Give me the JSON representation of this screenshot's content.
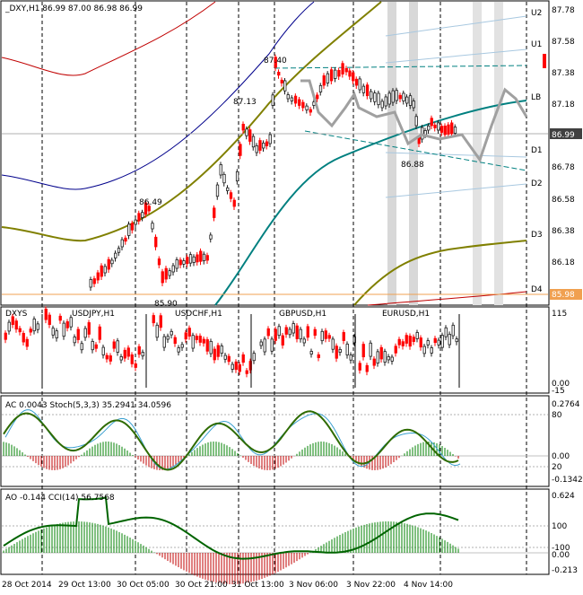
{
  "header": {
    "symbol_line": "_DXY,H1  86.99 87.00 86.98 86.99"
  },
  "colors": {
    "bull": "#1a1a1a",
    "bear": "#ff0000",
    "dark_blue_band": "#00008b",
    "red_band": "#c00000",
    "olive_band": "#808000",
    "teal_ma": "#008080",
    "projection": "#a0a0a0",
    "price_label_bg": "#404040",
    "orange_label_bg": "#f0a050",
    "stoch_line": "#008000",
    "cci_line": "#006400"
  },
  "main": {
    "price_scale": [
      "87.78",
      "87.58",
      "87.38",
      "87.18",
      "86.78",
      "86.58",
      "86.38",
      "86.18"
    ],
    "current_price": "86.99",
    "orange_price": "85.98",
    "pivot_labels": [
      "U2",
      "U1",
      "LB",
      "D1",
      "D2",
      "D3",
      "D4"
    ],
    "annotations": [
      "87.40",
      "87.13",
      "86.49",
      "86.88",
      "85.90"
    ]
  },
  "strip": {
    "left_label": "DXYS",
    "labels": [
      "USDJPY,H1",
      "USDCHF,H1",
      "GBPUSD,H1",
      "EURUSD,H1"
    ],
    "scale": [
      "115",
      "0.00",
      "-15"
    ]
  },
  "stoch_pane": {
    "label": "AC 0.0043  Stoch(5,3,3) 35.2941 34.0596",
    "scale": [
      "0.2764",
      "80",
      "0.00",
      "20",
      "-0.1342"
    ]
  },
  "cci_pane": {
    "label": "AO -0.144  CCI(14) 56.7568",
    "scale": [
      "0.624",
      "100",
      "-100",
      "0.00",
      "-0.213"
    ]
  },
  "time_axis": [
    "28 Oct 2014",
    "29 Oct 13:00",
    "30 Oct 05:00",
    "30 Oct 21:00",
    "31 Oct 13:00",
    "3 Nov 06:00",
    "3 Nov 22:00",
    "4 Nov 14:00"
  ]
}
